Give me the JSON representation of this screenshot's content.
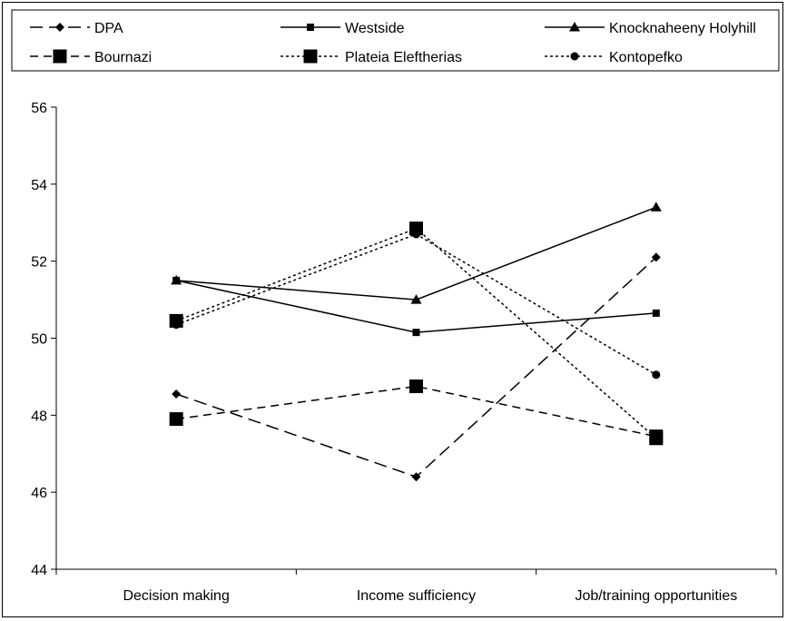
{
  "chart_data": {
    "type": "line",
    "categories": [
      "Decision making",
      "Income sufficiency",
      "Job/training opportunities"
    ],
    "ylim": [
      44,
      56
    ],
    "yticks": [
      "44",
      "46",
      "48",
      "50",
      "52",
      "54",
      "56"
    ],
    "grid": false,
    "legend_position": "top",
    "series": [
      {
        "name": "DPA",
        "values": [
          48.55,
          46.4,
          52.1
        ],
        "dash": "long-dash",
        "marker": "diamond",
        "marker_size": "small"
      },
      {
        "name": "Westside",
        "values": [
          51.5,
          50.15,
          50.65
        ],
        "dash": "solid",
        "marker": "square",
        "marker_size": "small"
      },
      {
        "name": "Knocknaheeny Holyhill",
        "values": [
          51.5,
          51.0,
          53.4
        ],
        "dash": "solid",
        "marker": "triangle",
        "marker_size": "small"
      },
      {
        "name": "Bournazi",
        "values": [
          47.9,
          48.75,
          47.45
        ],
        "dash": "medium-dash",
        "marker": "square",
        "marker_size": "large"
      },
      {
        "name": "Plateia Eleftherias",
        "values": [
          50.45,
          52.85,
          47.4
        ],
        "dash": "dotted",
        "marker": "square",
        "marker_size": "large"
      },
      {
        "name": "Kontopefko",
        "values": [
          50.35,
          52.7,
          49.05
        ],
        "dash": "dotted",
        "marker": "circle",
        "marker_size": "small"
      }
    ]
  }
}
